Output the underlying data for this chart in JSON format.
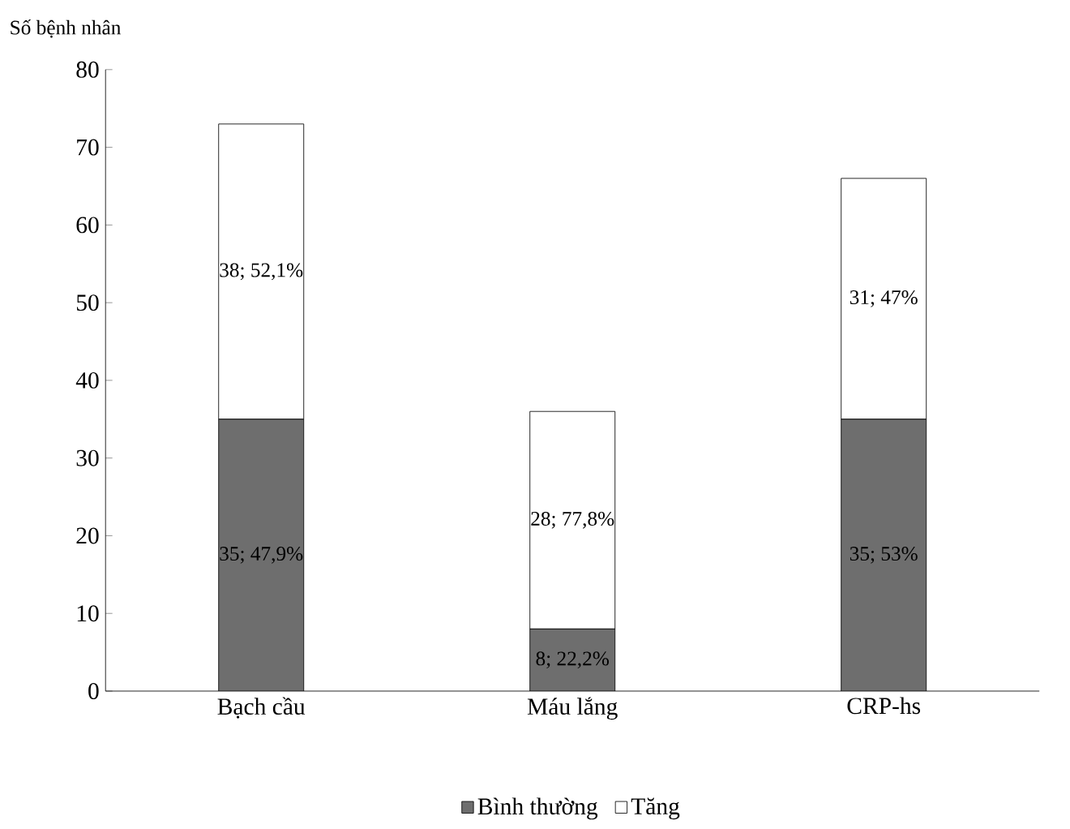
{
  "chart_data": {
    "type": "bar",
    "stacked": true,
    "ylabel": "Số bệnh nhân",
    "categories": [
      "Bạch cầu",
      "Máu lắng",
      "CRP-hs"
    ],
    "series": [
      {
        "name": "Bình thường",
        "color": "#6e6e6e",
        "values": [
          35,
          8,
          35
        ],
        "value_labels": [
          "35; 47,9%",
          "8; 22,2%",
          "35; 53%"
        ]
      },
      {
        "name": "Tăng",
        "color": "#ffffff",
        "values": [
          38,
          28,
          31
        ],
        "value_labels": [
          "38; 52,1%",
          "28; 77,8%",
          "31; 47%"
        ]
      }
    ],
    "ylim": [
      0,
      80
    ],
    "yticks": [
      0,
      10,
      20,
      30,
      40,
      50,
      60,
      70,
      80
    ],
    "grid": false,
    "legend": "bottom"
  }
}
